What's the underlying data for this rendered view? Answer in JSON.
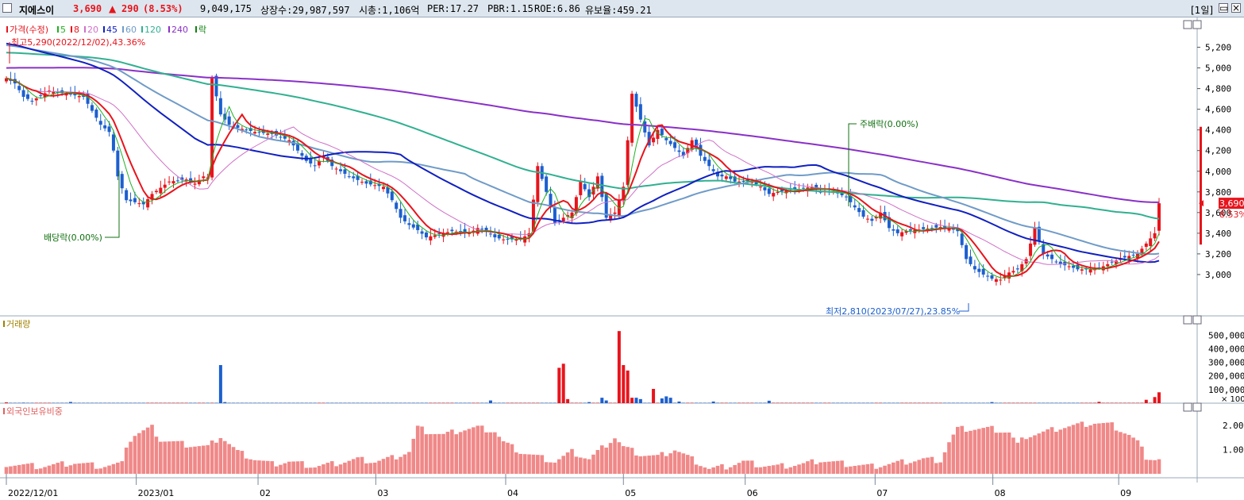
{
  "header": {
    "name": "지에스이",
    "price": "3,690",
    "change_arrow": "▲",
    "change": "290",
    "change_pct": "(8.53%)",
    "volume": "9,049,175",
    "listed_shares": "상장수:29,987,597",
    "market_cap": "시총:1,106억",
    "per": "PER:17.27",
    "pbr": "PBR:1.15",
    "roe": "ROE:6.86",
    "retention": "유보율:459.21",
    "period": "[1일]"
  },
  "colors": {
    "up": "#e8141c",
    "down": "#1c5fcf",
    "ma5": "#20b020",
    "ma8": "#e8141c",
    "ma20": "#d070c8",
    "ma45": "#1020c0",
    "ma60": "#6f9bc8",
    "ma120": "#30b090",
    "ma240": "#8a30c8",
    "foreign": "#f08888"
  },
  "chart_data": [
    {
      "type": "candlestick",
      "legend": [
        {
          "label": "가격(수정)",
          "color": "#e8141c"
        },
        {
          "label": "5",
          "color": "#20b020"
        },
        {
          "label": "8",
          "color": "#e8141c"
        },
        {
          "label": "20",
          "color": "#d070c8"
        },
        {
          "label": "45",
          "color": "#1020c0"
        },
        {
          "label": "60",
          "color": "#6f9bc8"
        },
        {
          "label": "120",
          "color": "#30b090"
        },
        {
          "label": "240",
          "color": "#8a30c8"
        },
        {
          "label": "락",
          "color": "#108010"
        }
      ],
      "yticks": [
        "5,200",
        "5,000",
        "4,800",
        "4,600",
        "4,400",
        "4,200",
        "4,000",
        "3,800",
        "3,600",
        "3,400",
        "3,200",
        "3,000"
      ],
      "ylim": [
        2600,
        5450
      ],
      "xtick_labels": [
        "2022/12/01",
        "2023/01",
        "02",
        "03",
        "04",
        "05",
        "06",
        "07",
        "08",
        "09"
      ],
      "xtick_dates": [
        "2022-12-01",
        "2023-01-02",
        "2023-02-01",
        "2023-03-02",
        "2023-04-03",
        "2023-05-02",
        "2023-06-01",
        "2023-07-03",
        "2023-08-01",
        "2023-09-01"
      ],
      "annotations": {
        "high": "최고5,290(2022/12/02),43.36%",
        "low": "최저2,810(2023/07/27),23.85%",
        "dividend": "배당락(0.00%)",
        "bonus": "주배락(0.00%)"
      },
      "current_price": "3,690",
      "current_pct": "8.53%",
      "close_keypoints": [
        [
          0,
          4900
        ],
        [
          2,
          4850
        ],
        [
          4,
          4720
        ],
        [
          6,
          4680
        ],
        [
          10,
          4780
        ],
        [
          14,
          4750
        ],
        [
          18,
          4720
        ],
        [
          22,
          4450
        ],
        [
          24,
          4380
        ],
        [
          25,
          4200
        ],
        [
          26,
          3950
        ],
        [
          28,
          3720
        ],
        [
          32,
          3680
        ],
        [
          34,
          3780
        ],
        [
          38,
          3900
        ],
        [
          42,
          3920
        ],
        [
          44,
          3880
        ],
        [
          46,
          3950
        ],
        [
          47,
          3940
        ],
        [
          48,
          4900
        ],
        [
          50,
          4550
        ],
        [
          52,
          4450
        ],
        [
          54,
          4420
        ],
        [
          58,
          4380
        ],
        [
          62,
          4360
        ],
        [
          66,
          4300
        ],
        [
          70,
          4100
        ],
        [
          72,
          4050
        ],
        [
          74,
          4150
        ],
        [
          76,
          4050
        ],
        [
          80,
          3950
        ],
        [
          84,
          3880
        ],
        [
          88,
          3850
        ],
        [
          90,
          3720
        ],
        [
          92,
          3550
        ],
        [
          94,
          3480
        ],
        [
          96,
          3430
        ],
        [
          98,
          3360
        ],
        [
          100,
          3380
        ],
        [
          104,
          3420
        ],
        [
          108,
          3400
        ],
        [
          110,
          3450
        ],
        [
          112,
          3420
        ],
        [
          114,
          3360
        ],
        [
          116,
          3340
        ],
        [
          120,
          3340
        ],
        [
          122,
          3400
        ],
        [
          124,
          4050
        ],
        [
          126,
          3800
        ],
        [
          128,
          3500
        ],
        [
          132,
          3600
        ],
        [
          134,
          3900
        ],
        [
          136,
          3750
        ],
        [
          138,
          3950
        ],
        [
          140,
          3550
        ],
        [
          142,
          3600
        ],
        [
          144,
          3850
        ],
        [
          146,
          4750
        ],
        [
          148,
          4500
        ],
        [
          150,
          4250
        ],
        [
          152,
          4400
        ],
        [
          154,
          4300
        ],
        [
          158,
          4150
        ],
        [
          160,
          4300
        ],
        [
          162,
          4150
        ],
        [
          164,
          4050
        ],
        [
          166,
          3950
        ],
        [
          168,
          3950
        ],
        [
          170,
          3900
        ],
        [
          174,
          3900
        ],
        [
          176,
          3850
        ],
        [
          178,
          3780
        ],
        [
          180,
          3800
        ],
        [
          184,
          3820
        ],
        [
          188,
          3850
        ],
        [
          190,
          3800
        ],
        [
          192,
          3820
        ],
        [
          196,
          3750
        ],
        [
          198,
          3650
        ],
        [
          200,
          3560
        ],
        [
          202,
          3520
        ],
        [
          204,
          3600
        ],
        [
          206,
          3450
        ],
        [
          208,
          3400
        ],
        [
          210,
          3420
        ],
        [
          214,
          3440
        ],
        [
          218,
          3460
        ],
        [
          220,
          3450
        ],
        [
          222,
          3420
        ],
        [
          224,
          3150
        ],
        [
          226,
          3050
        ],
        [
          228,
          3000
        ],
        [
          230,
          2960
        ],
        [
          232,
          2950
        ],
        [
          234,
          3020
        ],
        [
          236,
          3050
        ],
        [
          238,
          3150
        ],
        [
          240,
          3450
        ],
        [
          242,
          3200
        ],
        [
          244,
          3150
        ],
        [
          246,
          3100
        ],
        [
          248,
          3080
        ],
        [
          250,
          3050
        ],
        [
          254,
          3050
        ],
        [
          256,
          3080
        ],
        [
          258,
          3120
        ],
        [
          260,
          3150
        ],
        [
          262,
          3180
        ],
        [
          264,
          3200
        ],
        [
          266,
          3300
        ],
        [
          268,
          3400
        ],
        [
          269,
          3690
        ]
      ],
      "volume": {
        "yticks": [
          "500,000",
          "400,000",
          "300,000",
          "200,000",
          "100,000"
        ],
        "unit": "× 100",
        "ylim": [
          0,
          560000
        ],
        "spikes": [
          [
            0,
            6000
          ],
          [
            4,
            4000
          ],
          [
            15,
            9000
          ],
          [
            50,
            280000
          ],
          [
            51,
            8000
          ],
          [
            113,
            20000
          ],
          [
            129,
            260000
          ],
          [
            130,
            290000
          ],
          [
            131,
            30000
          ],
          [
            136,
            8000
          ],
          [
            139,
            40000
          ],
          [
            140,
            20000
          ],
          [
            143,
            530000
          ],
          [
            144,
            280000
          ],
          [
            145,
            240000
          ],
          [
            146,
            40000
          ],
          [
            147,
            40000
          ],
          [
            148,
            30000
          ],
          [
            151,
            105000
          ],
          [
            153,
            35000
          ],
          [
            154,
            50000
          ],
          [
            155,
            40000
          ],
          [
            157,
            12000
          ],
          [
            165,
            12000
          ],
          [
            178,
            18000
          ],
          [
            230,
            8000
          ],
          [
            255,
            10000
          ],
          [
            266,
            25000
          ],
          [
            268,
            45000
          ],
          [
            269,
            80000
          ]
        ]
      },
      "foreign_ratio": {
        "yticks": [
          "2.00",
          "1.00"
        ],
        "ylim": [
          0,
          2.45
        ],
        "keypoints": [
          [
            0,
            0.4
          ],
          [
            8,
            0.3
          ],
          [
            16,
            0.45
          ],
          [
            22,
            0.3
          ],
          [
            27,
            0.4
          ],
          [
            28,
            1.2
          ],
          [
            30,
            1.6
          ],
          [
            34,
            1.9
          ],
          [
            36,
            1.4
          ],
          [
            42,
            1.2
          ],
          [
            47,
            1.1
          ],
          [
            50,
            1.55
          ],
          [
            54,
            0.9
          ],
          [
            58,
            0.6
          ],
          [
            62,
            0.4
          ],
          [
            66,
            0.5
          ],
          [
            72,
            0.3
          ],
          [
            76,
            0.4
          ],
          [
            82,
            0.6
          ],
          [
            86,
            0.5
          ],
          [
            90,
            0.65
          ],
          [
            94,
            0.9
          ],
          [
            96,
            1.9
          ],
          [
            98,
            1.75
          ],
          [
            102,
            1.6
          ],
          [
            106,
            1.8
          ],
          [
            110,
            1.9
          ],
          [
            114,
            1.75
          ],
          [
            116,
            1.3
          ],
          [
            120,
            0.9
          ],
          [
            124,
            0.7
          ],
          [
            128,
            0.5
          ],
          [
            132,
            0.9
          ],
          [
            136,
            0.6
          ],
          [
            140,
            1.2
          ],
          [
            142,
            1.5
          ],
          [
            144,
            1.1
          ],
          [
            148,
            0.8
          ],
          [
            152,
            0.7
          ],
          [
            156,
            1.0
          ],
          [
            160,
            0.6
          ],
          [
            164,
            0.2
          ],
          [
            168,
            0.3
          ],
          [
            172,
            0.5
          ],
          [
            176,
            0.35
          ],
          [
            180,
            0.3
          ],
          [
            186,
            0.4
          ],
          [
            190,
            0.55
          ],
          [
            196,
            0.4
          ],
          [
            202,
            0.3
          ],
          [
            210,
            0.5
          ],
          [
            214,
            0.6
          ],
          [
            218,
            0.55
          ],
          [
            220,
            1.3
          ],
          [
            222,
            1.85
          ],
          [
            230,
            1.85
          ],
          [
            234,
            1.7
          ],
          [
            236,
            1.2
          ],
          [
            238,
            1.55
          ],
          [
            242,
            1.7
          ],
          [
            246,
            1.9
          ],
          [
            250,
            2.0
          ],
          [
            254,
            2.1
          ],
          [
            258,
            2.0
          ],
          [
            262,
            1.6
          ],
          [
            264,
            1.3
          ],
          [
            266,
            0.7
          ],
          [
            268,
            0.6
          ],
          [
            269,
            0.6
          ]
        ]
      }
    }
  ]
}
